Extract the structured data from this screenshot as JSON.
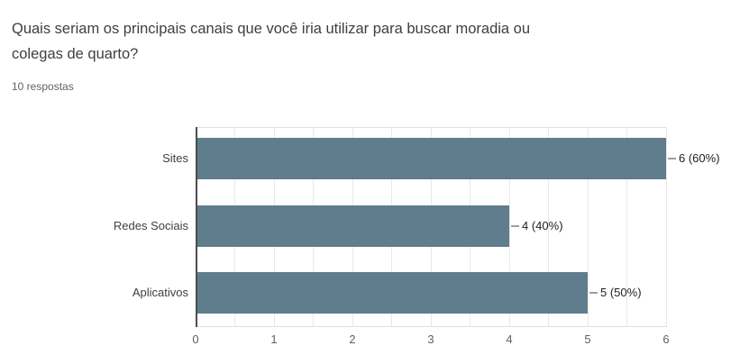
{
  "question": {
    "title_lines": [
      "Quais seriam os principais canais que você iria utilizar para buscar moradia ou",
      "colegas de quarto?"
    ],
    "responses_count_label": "10 respostas"
  },
  "chart_data": {
    "type": "bar",
    "orientation": "horizontal",
    "title": "Quais seriam os principais canais que você iria utilizar para buscar moradia ou colegas de quarto?",
    "categories": [
      "Sites",
      "Redes Sociais",
      "Aplicativos"
    ],
    "values": [
      6,
      4,
      5
    ],
    "value_labels": [
      "6 (60%)",
      "4 (40%)",
      "5 (50%)"
    ],
    "total_responses": 10,
    "xlim": [
      0,
      6
    ],
    "x_ticks": [
      0,
      1,
      2,
      3,
      4,
      5,
      6
    ],
    "minor_grid_step": 0.5,
    "grid": "on",
    "legend_position": "none",
    "colors": {
      "bar": "#5f7d8c",
      "axis_line": "#4d4d4d",
      "gridline": "#e8e8e8",
      "plot_border": "#e0e0e0",
      "leader_line": "#9e9e9e",
      "tick_label": "#616161",
      "value_label": "#202124",
      "category_label": "#3c4043"
    }
  }
}
